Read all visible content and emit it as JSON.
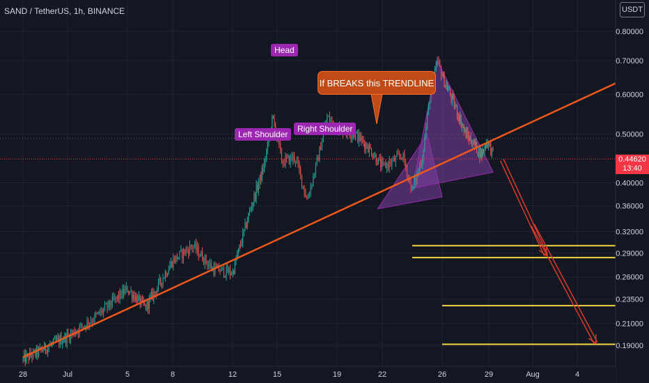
{
  "header": {
    "title": "SAND / TetherUS, 1h, BINANCE",
    "currency": "USDT"
  },
  "price": {
    "current": "0.44620",
    "countdown": "13:40"
  },
  "annotations": {
    "head": "Head",
    "left_shoulder": "Left Shoulder",
    "right_shoulder": "Right Shoulder",
    "callout": "If BREAKS this TRENDLINE"
  },
  "colors": {
    "up": "#26a69a",
    "down": "#ef5350",
    "trendline": "#f0581c",
    "target_line": "#f5d442",
    "arrow": "#d93a2b",
    "pattern_fill": "#7b3fa0"
  },
  "chart_data": {
    "type": "candlestick",
    "y_scale": "log",
    "y_ticks": [
      0.19,
      0.21,
      0.235,
      0.26,
      0.29,
      0.32,
      0.36,
      0.4,
      0.5,
      0.6,
      0.7,
      0.8
    ],
    "y_tick_labels": [
      "0.19000",
      "0.21000",
      "0.23500",
      "0.26000",
      "0.29000",
      "0.32000",
      "0.36000",
      "0.40000",
      "0.50000",
      "0.60000",
      "0.70000",
      "0.80000"
    ],
    "x_ticks": [
      "28",
      "Jul",
      "5",
      "8",
      "12",
      "15",
      "19",
      "22",
      "26",
      "29",
      "Aug",
      "4"
    ],
    "trendline": [
      [
        0,
        0.18
      ],
      [
        75,
        0.725
      ]
    ],
    "target_levels": [
      {
        "value": 0.3,
        "x_range": [
          41,
          71
        ]
      },
      {
        "value": 0.284,
        "x_range": [
          41,
          71
        ]
      },
      {
        "value": 0.228,
        "x_range": [
          44,
          71
        ]
      },
      {
        "value": 0.191,
        "x_range": [
          44,
          71
        ]
      }
    ],
    "projection_arrows": [
      [
        [
          51.5,
          0.444
        ],
        [
          56.8,
          0.287
        ]
      ],
      [
        [
          55.0,
          0.33
        ],
        [
          63.5,
          0.192
        ]
      ]
    ],
    "pattern_triangles": [
      [
        [
          37.5,
          0.355
        ],
        [
          42.5,
          0.5
        ],
        [
          44.0,
          0.375
        ]
      ],
      [
        [
          41.0,
          0.39
        ],
        [
          43.5,
          0.7
        ],
        [
          50.5,
          0.42
        ]
      ]
    ],
    "close_anchors": [
      [
        0,
        0.178
      ],
      [
        5,
        0.198
      ],
      [
        8,
        0.218
      ],
      [
        11,
        0.246
      ],
      [
        13,
        0.226
      ],
      [
        16,
        0.28
      ],
      [
        18,
        0.3
      ],
      [
        20,
        0.27
      ],
      [
        22,
        0.265
      ],
      [
        24,
        0.355
      ],
      [
        25.5,
        0.43
      ],
      [
        26.5,
        0.54
      ],
      [
        27.5,
        0.44
      ],
      [
        28.8,
        0.45
      ],
      [
        30,
        0.37
      ],
      [
        31,
        0.44
      ],
      [
        32,
        0.54
      ],
      [
        33,
        0.515
      ],
      [
        35,
        0.5
      ],
      [
        36.5,
        0.47
      ],
      [
        38,
        0.43
      ],
      [
        39,
        0.44
      ],
      [
        40,
        0.455
      ],
      [
        41,
        0.385
      ],
      [
        42,
        0.45
      ],
      [
        42.7,
        0.58
      ],
      [
        43.5,
        0.7
      ],
      [
        44.2,
        0.64
      ],
      [
        45,
        0.6
      ],
      [
        46,
        0.55
      ],
      [
        47,
        0.5
      ],
      [
        48,
        0.48
      ],
      [
        49,
        0.455
      ],
      [
        49.8,
        0.485
      ],
      [
        50.6,
        0.45
      ]
    ],
    "candle_count": 400
  }
}
